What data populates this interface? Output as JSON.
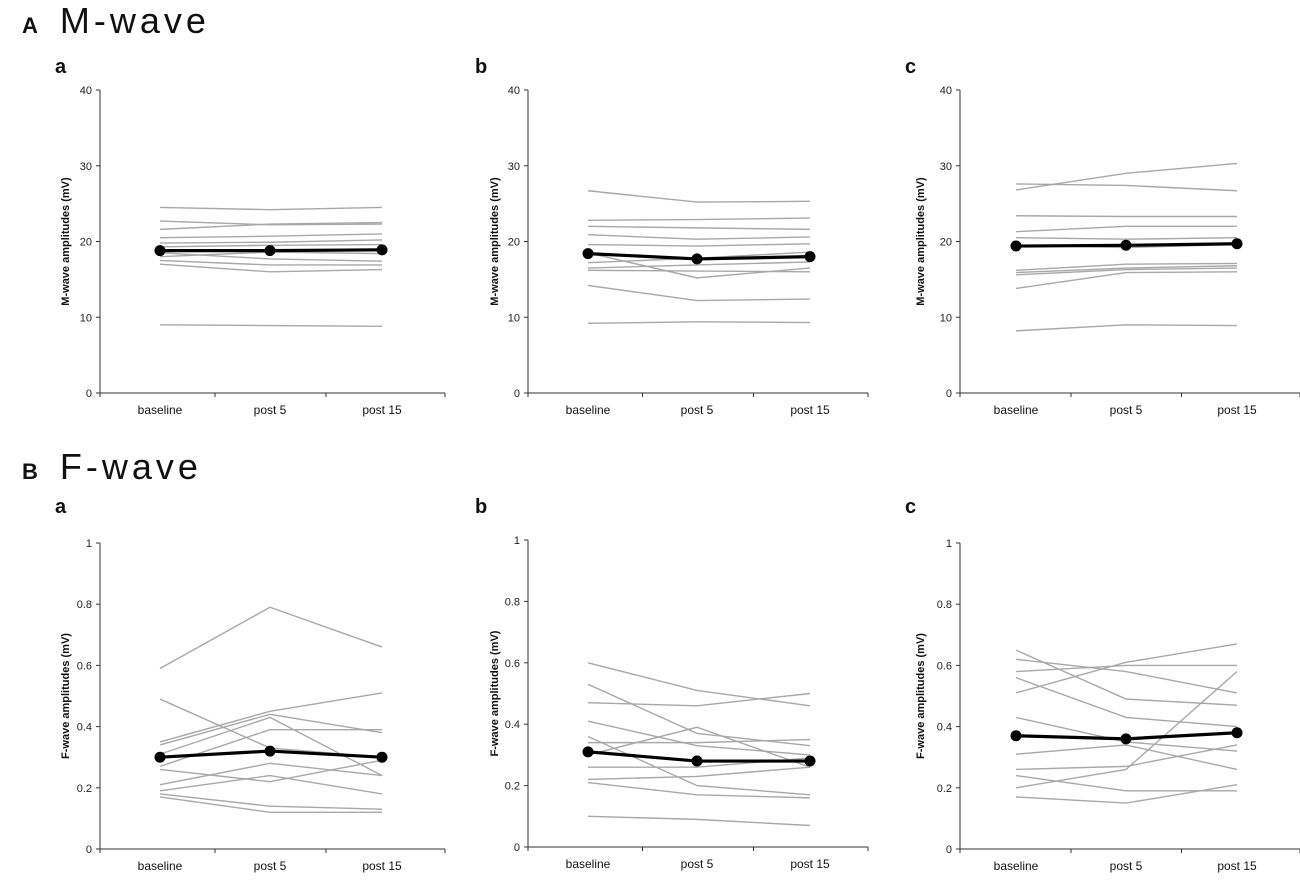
{
  "sections": [
    {
      "letter": "A",
      "title": "M-wave"
    },
    {
      "letter": "B",
      "title": "F-wave"
    }
  ],
  "colors": {
    "subject_line": "#a8a8a8",
    "mean_line": "#000000",
    "axis": "#333333"
  },
  "chart_data": [
    {
      "type": "line",
      "section": "A",
      "panel": "a",
      "categories": [
        "baseline",
        "post 5",
        "post 15"
      ],
      "ylabel": "M-wave amplitudes (mV)",
      "ylim": [
        0,
        40
      ],
      "yticks": [
        0,
        10,
        20,
        30,
        40
      ],
      "series": [
        {
          "name": "subject 1",
          "values": [
            24.5,
            24.2,
            24.5
          ]
        },
        {
          "name": "subject 2",
          "values": [
            22.7,
            22.2,
            22.3
          ]
        },
        {
          "name": "subject 3",
          "values": [
            21.6,
            22.3,
            22.5
          ]
        },
        {
          "name": "subject 4",
          "values": [
            20.5,
            20.7,
            21.0
          ]
        },
        {
          "name": "subject 5",
          "values": [
            19.8,
            19.9,
            20.2
          ]
        },
        {
          "name": "subject 6",
          "values": [
            19.3,
            19.5,
            19.6
          ]
        },
        {
          "name": "subject 7",
          "values": [
            18.5,
            17.7,
            17.4
          ]
        },
        {
          "name": "subject 8",
          "values": [
            18.0,
            18.6,
            18.4
          ]
        },
        {
          "name": "subject 9",
          "values": [
            17.5,
            16.9,
            16.9
          ]
        },
        {
          "name": "subject 10",
          "values": [
            17.0,
            16.0,
            16.3
          ]
        },
        {
          "name": "subject 11",
          "values": [
            9.0,
            8.9,
            8.8
          ]
        },
        {
          "name": "mean",
          "values": [
            18.8,
            18.8,
            18.9
          ],
          "is_mean": true
        }
      ]
    },
    {
      "type": "line",
      "section": "A",
      "panel": "b",
      "categories": [
        "baseline",
        "post 5",
        "post 15"
      ],
      "ylabel": "M-wave amplitudes (mV)",
      "ylim": [
        0,
        40
      ],
      "yticks": [
        0,
        10,
        20,
        30,
        40
      ],
      "series": [
        {
          "name": "subject 1",
          "values": [
            26.7,
            25.2,
            25.3
          ]
        },
        {
          "name": "subject 2",
          "values": [
            22.8,
            22.9,
            23.1
          ]
        },
        {
          "name": "subject 3",
          "values": [
            22.0,
            21.8,
            21.6
          ]
        },
        {
          "name": "subject 4",
          "values": [
            20.9,
            20.3,
            20.6
          ]
        },
        {
          "name": "subject 5",
          "values": [
            19.6,
            19.4,
            19.7
          ]
        },
        {
          "name": "subject 6",
          "values": [
            18.5,
            15.2,
            16.5
          ]
        },
        {
          "name": "subject 7",
          "values": [
            17.2,
            17.8,
            18.6
          ]
        },
        {
          "name": "subject 8",
          "values": [
            16.5,
            16.9,
            17.3
          ]
        },
        {
          "name": "subject 9",
          "values": [
            16.2,
            16.1,
            16.0
          ]
        },
        {
          "name": "subject 10",
          "values": [
            14.2,
            12.2,
            12.4
          ]
        },
        {
          "name": "subject 11",
          "values": [
            9.2,
            9.4,
            9.3
          ]
        },
        {
          "name": "mean",
          "values": [
            18.4,
            17.7,
            18.0
          ],
          "is_mean": true
        }
      ]
    },
    {
      "type": "line",
      "section": "A",
      "panel": "c",
      "categories": [
        "baseline",
        "post 5",
        "post 15"
      ],
      "ylabel": "M-wave amplitudes (mV)",
      "ylim": [
        0,
        40
      ],
      "yticks": [
        0,
        10,
        20,
        30,
        40
      ],
      "series": [
        {
          "name": "subject 1",
          "values": [
            26.8,
            29.0,
            30.3
          ]
        },
        {
          "name": "subject 2",
          "values": [
            27.6,
            27.4,
            26.7
          ]
        },
        {
          "name": "subject 3",
          "values": [
            23.4,
            23.3,
            23.3
          ]
        },
        {
          "name": "subject 4",
          "values": [
            21.3,
            22.0,
            22.0
          ]
        },
        {
          "name": "subject 5",
          "values": [
            20.5,
            20.3,
            20.5
          ]
        },
        {
          "name": "subject 6",
          "values": [
            19.5,
            19.2,
            19.6
          ]
        },
        {
          "name": "subject 7",
          "values": [
            16.2,
            17.0,
            17.1
          ]
        },
        {
          "name": "subject 8",
          "values": [
            15.9,
            16.5,
            16.8
          ]
        },
        {
          "name": "subject 9",
          "values": [
            15.6,
            16.3,
            16.5
          ]
        },
        {
          "name": "subject 10",
          "values": [
            13.8,
            15.9,
            16.0
          ]
        },
        {
          "name": "subject 11",
          "values": [
            8.2,
            9.0,
            8.9
          ]
        },
        {
          "name": "mean",
          "values": [
            19.4,
            19.5,
            19.7
          ],
          "is_mean": true
        }
      ]
    },
    {
      "type": "line",
      "section": "B",
      "panel": "a",
      "categories": [
        "baseline",
        "post 5",
        "post 15"
      ],
      "ylabel": "F-wave amplitudes (mV)",
      "ylim": [
        0,
        1
      ],
      "yticks": [
        0,
        0.2,
        0.4,
        0.6,
        0.8,
        1
      ],
      "series": [
        {
          "name": "subject 1",
          "values": [
            0.59,
            0.79,
            0.66
          ]
        },
        {
          "name": "subject 2",
          "values": [
            0.49,
            0.33,
            0.3
          ]
        },
        {
          "name": "subject 3",
          "values": [
            0.35,
            0.45,
            0.51
          ]
        },
        {
          "name": "subject 4",
          "values": [
            0.34,
            0.44,
            0.38
          ]
        },
        {
          "name": "subject 5",
          "values": [
            0.31,
            0.43,
            0.24
          ]
        },
        {
          "name": "subject 6",
          "values": [
            0.27,
            0.39,
            0.39
          ]
        },
        {
          "name": "subject 7",
          "values": [
            0.26,
            0.22,
            0.29
          ]
        },
        {
          "name": "subject 8",
          "values": [
            0.21,
            0.28,
            0.24
          ]
        },
        {
          "name": "subject 9",
          "values": [
            0.19,
            0.24,
            0.18
          ]
        },
        {
          "name": "subject 10",
          "values": [
            0.18,
            0.14,
            0.13
          ]
        },
        {
          "name": "subject 11",
          "values": [
            0.17,
            0.12,
            0.12
          ]
        },
        {
          "name": "mean",
          "values": [
            0.3,
            0.32,
            0.3
          ],
          "is_mean": true
        }
      ]
    },
    {
      "type": "line",
      "section": "B",
      "panel": "b",
      "categories": [
        "baseline",
        "post 5",
        "post 15"
      ],
      "ylabel": "F-wave amplitudes (mV)",
      "ylim": [
        0,
        1
      ],
      "yticks": [
        0,
        0.2,
        0.4,
        0.6,
        0.8,
        1
      ],
      "series": [
        {
          "name": "subject 1",
          "values": [
            0.6,
            0.51,
            0.46
          ]
        },
        {
          "name": "subject 2",
          "values": [
            0.53,
            0.37,
            0.33
          ]
        },
        {
          "name": "subject 3",
          "values": [
            0.47,
            0.46,
            0.5
          ]
        },
        {
          "name": "subject 4",
          "values": [
            0.41,
            0.33,
            0.3
          ]
        },
        {
          "name": "subject 5",
          "values": [
            0.36,
            0.2,
            0.17
          ]
        },
        {
          "name": "subject 6",
          "values": [
            0.34,
            0.34,
            0.35
          ]
        },
        {
          "name": "subject 7",
          "values": [
            0.3,
            0.39,
            0.26
          ]
        },
        {
          "name": "subject 8",
          "values": [
            0.26,
            0.26,
            0.29
          ]
        },
        {
          "name": "subject 9",
          "values": [
            0.22,
            0.23,
            0.26
          ]
        },
        {
          "name": "subject 10",
          "values": [
            0.21,
            0.17,
            0.16
          ]
        },
        {
          "name": "subject 11",
          "values": [
            0.1,
            0.09,
            0.07
          ]
        },
        {
          "name": "mean",
          "values": [
            0.31,
            0.28,
            0.28
          ],
          "is_mean": true
        }
      ]
    },
    {
      "type": "line",
      "section": "B",
      "panel": "c",
      "categories": [
        "baseline",
        "post 5",
        "post 15"
      ],
      "ylabel": "F-wave amplitudes (mV)",
      "ylim": [
        0,
        1
      ],
      "yticks": [
        0,
        0.2,
        0.4,
        0.6,
        0.8,
        1
      ],
      "series": [
        {
          "name": "subject 1",
          "values": [
            0.65,
            0.49,
            0.47
          ]
        },
        {
          "name": "subject 2",
          "values": [
            0.62,
            0.58,
            0.51
          ]
        },
        {
          "name": "subject 3",
          "values": [
            0.58,
            0.6,
            0.6
          ]
        },
        {
          "name": "subject 4",
          "values": [
            0.51,
            0.61,
            0.67
          ]
        },
        {
          "name": "subject 5",
          "values": [
            0.56,
            0.43,
            0.4
          ]
        },
        {
          "name": "subject 6",
          "values": [
            0.43,
            0.35,
            0.32
          ]
        },
        {
          "name": "subject 7",
          "values": [
            0.31,
            0.34,
            0.26
          ]
        },
        {
          "name": "subject 8",
          "values": [
            0.26,
            0.27,
            0.34
          ]
        },
        {
          "name": "subject 9",
          "values": [
            0.24,
            0.19,
            0.19
          ]
        },
        {
          "name": "subject 10",
          "values": [
            0.2,
            0.26,
            0.58
          ]
        },
        {
          "name": "subject 11",
          "values": [
            0.17,
            0.15,
            0.21
          ]
        },
        {
          "name": "mean",
          "values": [
            0.37,
            0.36,
            0.38
          ],
          "is_mean": true
        }
      ]
    }
  ]
}
